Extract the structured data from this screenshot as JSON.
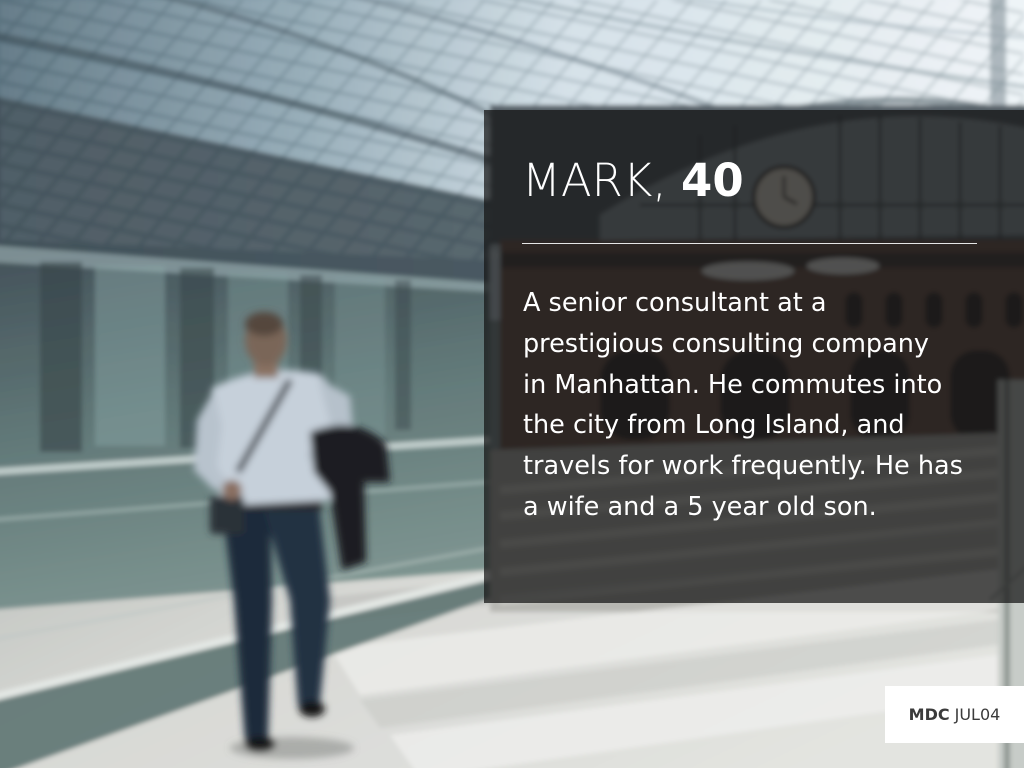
{
  "theme": {
    "panel_overlay": "#141414b8",
    "text": "#ffffff",
    "rule": "#e6e6e6",
    "badge_background": "#ffffff",
    "badge_text": "#3b3b3b"
  },
  "persona": {
    "name": "MARK,",
    "age": "40",
    "description_lines": [
      "A senior consultant at a",
      "prestigious consulting company",
      "in Manhattan. He commutes into",
      "the city from Long Island, and",
      "travels for work frequently. He has",
      "a wife and a 5 year old son."
    ]
  },
  "footer": {
    "org": "MDC",
    "date": "JUL04"
  }
}
